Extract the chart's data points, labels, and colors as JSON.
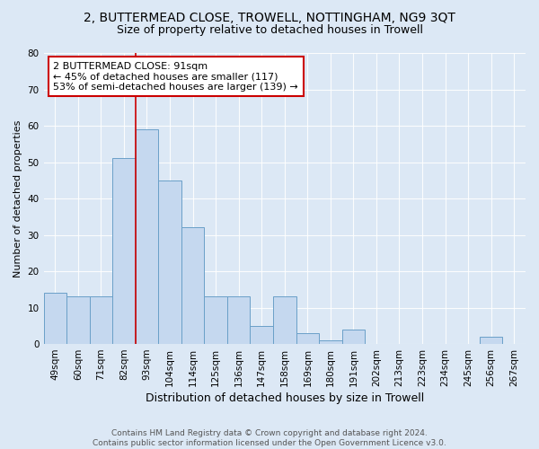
{
  "title": "2, BUTTERMEAD CLOSE, TROWELL, NOTTINGHAM, NG9 3QT",
  "subtitle": "Size of property relative to detached houses in Trowell",
  "xlabel": "Distribution of detached houses by size in Trowell",
  "ylabel": "Number of detached properties",
  "categories": [
    "49sqm",
    "60sqm",
    "71sqm",
    "82sqm",
    "93sqm",
    "104sqm",
    "114sqm",
    "125sqm",
    "136sqm",
    "147sqm",
    "158sqm",
    "169sqm",
    "180sqm",
    "191sqm",
    "202sqm",
    "213sqm",
    "223sqm",
    "234sqm",
    "245sqm",
    "256sqm",
    "267sqm"
  ],
  "values": [
    14,
    13,
    13,
    51,
    59,
    45,
    32,
    13,
    13,
    5,
    13,
    3,
    1,
    4,
    0,
    0,
    0,
    0,
    0,
    2,
    0
  ],
  "bar_color": "#c5d8ef",
  "bar_edgecolor": "#6aa0c8",
  "vline_color": "#cc0000",
  "annotation_text": "2 BUTTERMEAD CLOSE: 91sqm\n← 45% of detached houses are smaller (117)\n53% of semi-detached houses are larger (139) →",
  "annotation_box_color": "#ffffff",
  "annotation_box_edgecolor": "#cc0000",
  "ylim": [
    0,
    80
  ],
  "yticks": [
    0,
    10,
    20,
    30,
    40,
    50,
    60,
    70,
    80
  ],
  "background_color": "#dce8f5",
  "plot_background": "#dce8f5",
  "footer_text": "Contains HM Land Registry data © Crown copyright and database right 2024.\nContains public sector information licensed under the Open Government Licence v3.0.",
  "title_fontsize": 10,
  "subtitle_fontsize": 9,
  "xlabel_fontsize": 9,
  "ylabel_fontsize": 8,
  "tick_fontsize": 7.5,
  "annotation_fontsize": 8,
  "footer_fontsize": 6.5
}
